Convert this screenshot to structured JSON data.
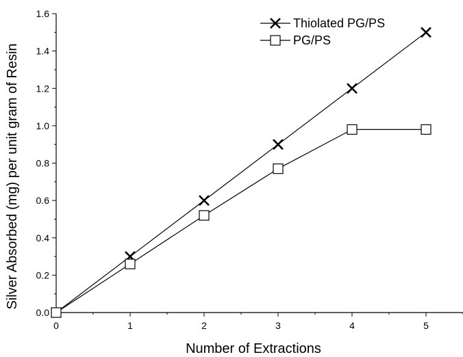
{
  "chart_data": {
    "type": "line",
    "title": "",
    "xlabel": "Number of Extractions",
    "ylabel": "Silver Absorbed (mg) per unit gram of Resin",
    "xlim": [
      0,
      5.5
    ],
    "ylim": [
      0,
      1.6
    ],
    "x_ticks": [
      "0",
      "1",
      "2",
      "3",
      "4",
      "5"
    ],
    "y_ticks": [
      "0.0",
      "0.2",
      "0.4",
      "0.6",
      "0.8",
      "1.0",
      "1.2",
      "1.4",
      "1.6"
    ],
    "grid": false,
    "legend_position": "top-right",
    "series": [
      {
        "name": "Thiolated PG/PS",
        "marker": "x",
        "color": "#000000",
        "x": [
          0,
          1,
          2,
          3,
          4,
          5
        ],
        "y": [
          0,
          0.3,
          0.6,
          0.9,
          1.2,
          1.5
        ]
      },
      {
        "name": "PG/PS",
        "marker": "square-open",
        "color": "#000000",
        "x": [
          0,
          1,
          2,
          3,
          4,
          5
        ],
        "y": [
          0,
          0.26,
          0.52,
          0.77,
          0.98,
          0.98
        ]
      }
    ]
  }
}
